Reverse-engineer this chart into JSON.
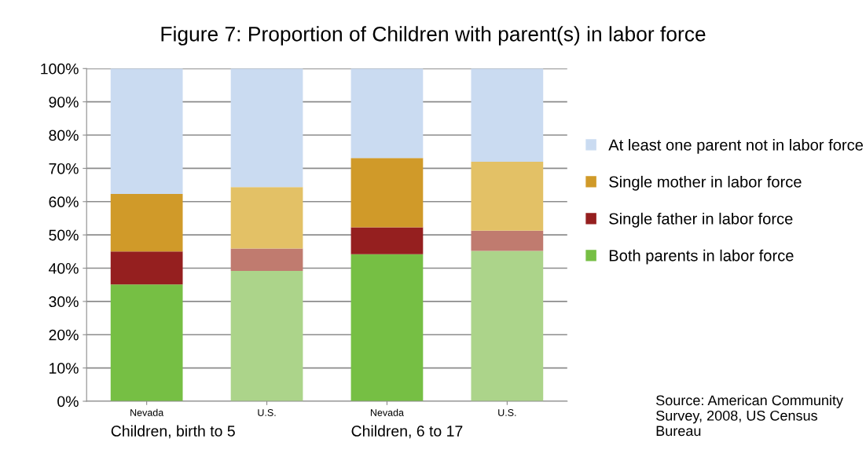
{
  "chart_data": {
    "type": "bar",
    "stacked": true,
    "title": "Figure 7: Proportion of Children with parent(s) in labor force",
    "categories": [
      "Nevada",
      "U.S.",
      "Nevada",
      "U.S."
    ],
    "series": [
      {
        "name": "Both parents in labor force",
        "color": "#76bf44",
        "colors": [
          "#76bf44",
          "#acd48a",
          "#76bf44",
          "#acd48a"
        ],
        "values": [
          35.1,
          39.2,
          44.2,
          45.2
        ]
      },
      {
        "name": "Single father in labor force",
        "color": "#951f1f",
        "colors": [
          "#951f1f",
          "#c07b6f",
          "#951f1f",
          "#c07b6f"
        ],
        "values": [
          9.9,
          6.7,
          8.1,
          6.1
        ]
      },
      {
        "name": "Single mother in labor force",
        "color": "#d09a29",
        "colors": [
          "#d09a29",
          "#e3c166",
          "#d09a29",
          "#e3c166"
        ],
        "values": [
          17.3,
          18.5,
          20.8,
          20.7
        ]
      },
      {
        "name": "At least one parent not in labor force",
        "color": "#cadbf1",
        "colors": [
          "#cadbf1",
          "#cadbf1",
          "#cadbf1",
          "#cadbf1"
        ],
        "values": [
          37.7,
          35.6,
          26.9,
          28.0
        ]
      }
    ],
    "ylim": [
      0,
      100
    ],
    "yticks": [
      {
        "value": 0,
        "label": "0%"
      },
      {
        "value": 10,
        "label": "10%"
      },
      {
        "value": 20,
        "label": "20%"
      },
      {
        "value": 30,
        "label": "30%"
      },
      {
        "value": 40,
        "label": "40%"
      },
      {
        "value": 50,
        "label": "50%"
      },
      {
        "value": 60,
        "label": "60%"
      },
      {
        "value": 70,
        "label": "70%"
      },
      {
        "value": 80,
        "label": "80%"
      },
      {
        "value": 90,
        "label": "90%"
      },
      {
        "value": 100,
        "label": "100%"
      }
    ],
    "grid": "y",
    "legend": "right",
    "annotations": [
      "Children, birth to 5",
      "Children, 6 to 17",
      "Source: American Community Survey, 2008, US Census Bureau"
    ]
  }
}
